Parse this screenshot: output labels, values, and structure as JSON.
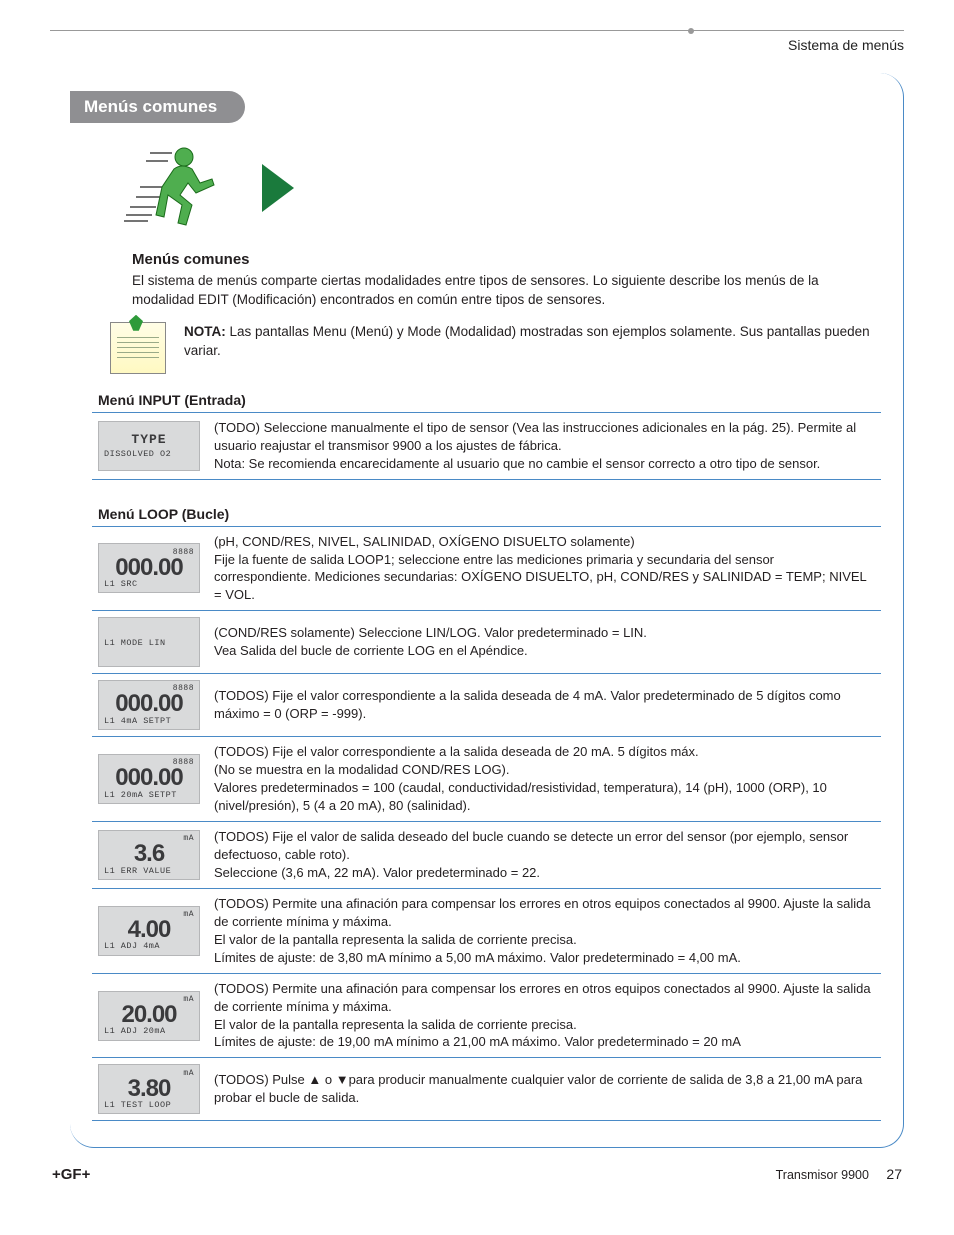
{
  "header": {
    "breadcrumb": "Sistema de menús"
  },
  "tab_label": "Menús comunes",
  "intro": {
    "title": "Menús comunes",
    "text": "El sistema de menús comparte ciertas modalidades entre tipos de sensores. Lo siguiente describe los menús de la modalidad EDIT (Modificación) encontrados en común entre tipos de sensores."
  },
  "note": {
    "label": "NOTA:",
    "text": " Las pantallas Menu (Menú) y Mode (Modalidad) mostradas son ejemplos solamente. Sus pantallas pueden variar."
  },
  "input_menu": {
    "heading": "Menú INPUT (Entrada)",
    "rows": [
      {
        "lcd": {
          "mid": "TYPE",
          "bot": "DISSOLVED O2"
        },
        "desc": "(TODO) Seleccione manualmente el tipo de sensor (Vea las instrucciones adicionales en la pág. 25). Permite al usuario reajustar el transmisor 9900 a los ajustes de fábrica.\nNota: Se recomienda encarecidamente al usuario que no cambie el sensor correcto a otro tipo de sensor."
      }
    ]
  },
  "loop_menu": {
    "heading": "Menú LOOP (Bucle)",
    "rows": [
      {
        "lcd": {
          "small": "8888",
          "big": "000.00",
          "bot": "L1 SRC"
        },
        "desc": "(pH, COND/RES, NIVEL, SALINIDAD, OXÍGENO DISUELTO solamente)\nFije la fuente de salida LOOP1; seleccione entre las mediciones primaria y secundaria del sensor correspondiente. Mediciones secundarias: OXÍGENO DISUELTO, pH, COND/RES y SALINIDAD = TEMP; NIVEL = VOL."
      },
      {
        "lcd": {
          "bot": "L1  MODE LIN"
        },
        "desc": "(COND/RES solamente) Seleccione LIN/LOG. Valor predeterminado = LIN.\nVea Salida del bucle de corriente LOG en el Apéndice."
      },
      {
        "lcd": {
          "small": "8888",
          "big": "000.00",
          "bot": "L1 4mA SETPT"
        },
        "desc": "(TODOS) Fije el valor correspondiente a la salida deseada de 4 mA. Valor predeterminado de 5 dígitos como máximo = 0 (ORP = -999)."
      },
      {
        "lcd": {
          "small": "8888",
          "big": "000.00",
          "bot": "L1 20mA SETPT"
        },
        "desc": "(TODOS) Fije el valor correspondiente a la salida deseada de 20 mA. 5 dígitos máx.\n(No se muestra en la modalidad COND/RES LOG).\nValores predeterminados = 100 (caudal, conductividad/resistividad, temperatura), 14 (pH), 1000 (ORP), 10 (nivel/presión), 5 (4 a 20 mA), 80 (salinidad)."
      },
      {
        "lcd": {
          "small": "mA",
          "big": "3.6",
          "bot": "L1 ERR VALUE"
        },
        "desc": "(TODOS) Fije el valor de salida deseado del bucle cuando se detecte un error del sensor (por ejemplo, sensor defectuoso, cable roto).\nSeleccione (3,6 mA, 22 mA). Valor predeterminado = 22."
      },
      {
        "lcd": {
          "small": "mA",
          "big": "4.00",
          "bot": "L1 ADJ 4mA"
        },
        "desc": "(TODOS) Permite una afinación para compensar los errores en otros equipos conectados al 9900. Ajuste la salida de corriente mínima y máxima.\nEl valor de la pantalla representa la salida de corriente precisa.\nLímites de ajuste: de 3,80 mA mínimo a 5,00 mA máximo. Valor predeterminado = 4,00 mA."
      },
      {
        "lcd": {
          "small": "mA",
          "big": "20.00",
          "bot": "L1 ADJ 20mA"
        },
        "desc": "(TODOS) Permite una afinación para compensar los errores en otros equipos conectados al 9900. Ajuste la salida de corriente mínima y máxima.\nEl valor de la pantalla representa la salida de corriente precisa.\nLímites de ajuste: de 19,00 mA mínimo a 21,00 mA máximo. Valor predeterminado = 20 mA"
      },
      {
        "lcd": {
          "small": "mA",
          "big": "3.80",
          "bot": "L1 TEST LOOP"
        },
        "desc": "(TODOS) Pulse ▲ o ▼para producir manualmente cualquier valor de corriente de salida de 3,8 a 21,00 mA para probar el bucle de salida."
      }
    ]
  },
  "footer": {
    "brand": "+GF+",
    "product": "Transmisor 9900",
    "page": "27"
  }
}
